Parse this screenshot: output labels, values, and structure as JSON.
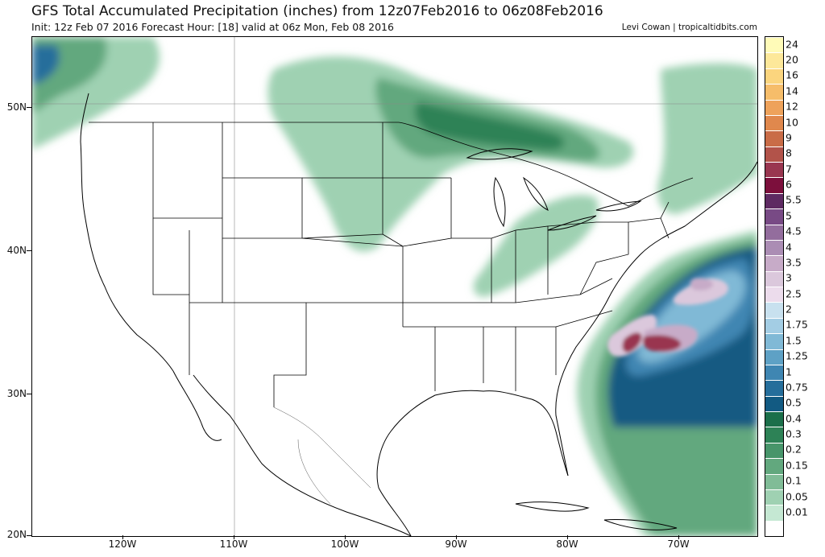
{
  "title": "GFS Total Accumulated Precipitation (inches) from 12z07Feb2016 to 06z08Feb2016",
  "subtitle": "Init: 12z Feb 07 2016   Forecast Hour: [18]   valid at 06z Mon, Feb 08 2016",
  "credit": "Levi Cowan | tropicaltidbits.com",
  "lat_labels": [
    "50N",
    "40N",
    "30N",
    "20N"
  ],
  "lon_labels": [
    "120W",
    "110W",
    "100W",
    "90W",
    "80W",
    "70W"
  ],
  "colorbar": {
    "levels": [
      "24",
      "20",
      "16",
      "14",
      "12",
      "10",
      "9",
      "8",
      "7",
      "6",
      "5.5",
      "5",
      "4.5",
      "4",
      "3.5",
      "3",
      "2.5",
      "2",
      "1.75",
      "1.5",
      "1.25",
      "1",
      "0.75",
      "0.5",
      "0.4",
      "0.3",
      "0.2",
      "0.15",
      "0.1",
      "0.05",
      "0.01"
    ],
    "colors": [
      "#fffbb8",
      "#fde89a",
      "#fbd57e",
      "#f6bd6a",
      "#eea25b",
      "#e0884d",
      "#c96c47",
      "#b2534a",
      "#993650",
      "#7c0f3c",
      "#5e2a62",
      "#784a85",
      "#936d9d",
      "#ab8db4",
      "#c7abc8",
      "#dbc8dc",
      "#ecdcec",
      "#c8e1ef",
      "#a3cde4",
      "#80b9d6",
      "#5ea1c5",
      "#3f86b2",
      "#256e9b",
      "#125a82",
      "#1b6f4a",
      "#2d8256",
      "#47956a",
      "#62a87e",
      "#80bc97",
      "#9fd1b2",
      "#c5e8d3",
      "#ffffff"
    ]
  }
}
